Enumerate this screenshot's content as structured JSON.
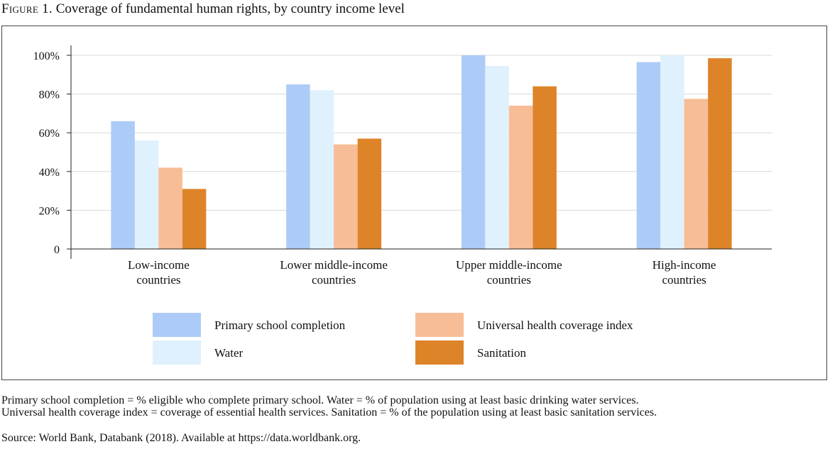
{
  "figure": {
    "label": "Figure 1.",
    "title": "Coverage of fundamental human rights, by country income level"
  },
  "notes": {
    "line1": "Primary school completion = % eligible who complete primary school. Water = % of population using at least basic drinking water services.",
    "line2": "Universal health coverage index = coverage of essential health services. Sanitation = % of the population using at least basic sanitation services.",
    "source": "Source: World Bank, Databank (2018). Available at https://data.worldbank.org."
  },
  "chart_data": {
    "type": "bar",
    "categories": [
      [
        "Low-income",
        "countries"
      ],
      [
        "Lower middle-income",
        "countries"
      ],
      [
        "Upper middle-income",
        "countries"
      ],
      [
        "High-income",
        "countries"
      ]
    ],
    "series": [
      {
        "name": "Primary school completion",
        "color": "#adcbf7",
        "values": [
          66,
          85,
          100,
          96.5
        ]
      },
      {
        "name": "Water",
        "color": "#dff1fc",
        "values": [
          56,
          82,
          94.5,
          100
        ]
      },
      {
        "name": "Universal health coverage index",
        "color": "#f7bd96",
        "values": [
          42,
          54,
          74,
          77.5
        ]
      },
      {
        "name": "Sanitation",
        "color": "#de8428",
        "values": [
          31,
          57,
          84,
          98.5
        ]
      }
    ],
    "yticks": [
      "0",
      "20%",
      "40%",
      "60%",
      "80%",
      "100%"
    ],
    "ylim": [
      0,
      100
    ],
    "grid": true,
    "legend_position": "bottom"
  }
}
